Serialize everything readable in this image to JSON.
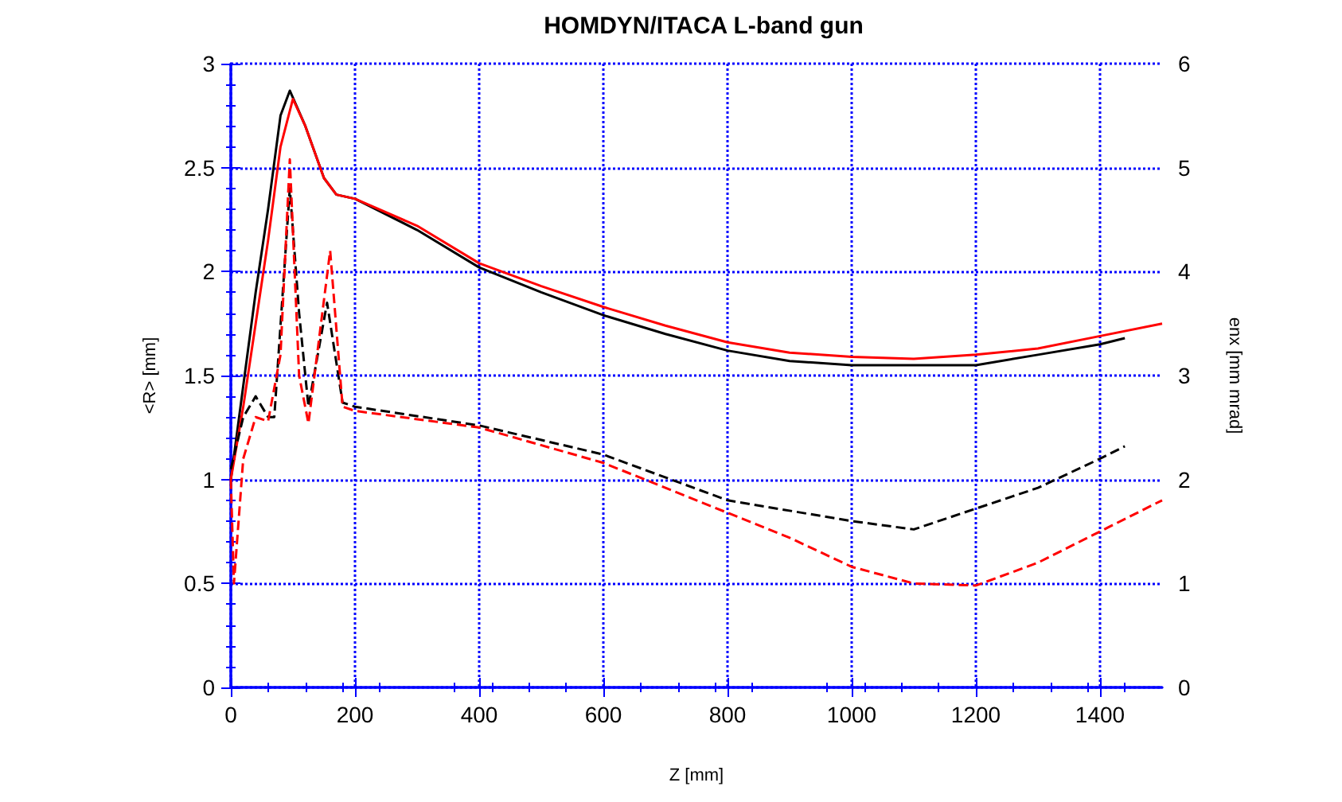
{
  "chart_data": {
    "type": "line",
    "title": "HOMDYN/ITACA L-band gun",
    "xlabel": "Z [mm]",
    "ylabel": "<R> [mm]",
    "y2label": "enx [mm mrad]",
    "xlim": [
      0,
      1500
    ],
    "xticks": [
      0,
      200,
      400,
      600,
      800,
      1000,
      1200,
      1400
    ],
    "ylim": [
      0,
      3
    ],
    "yticks": [
      0,
      0.5,
      1,
      1.5,
      2,
      2.5,
      3
    ],
    "y2lim": [
      0,
      6
    ],
    "y2ticks": [
      0,
      1,
      2,
      3,
      4,
      5,
      6
    ],
    "grid": true,
    "marker": "none",
    "series": [
      {
        "color": "#000000",
        "line_style": "solid",
        "x": [
          0,
          20,
          40,
          60,
          80,
          95,
          120,
          150,
          170,
          200,
          300,
          400,
          500,
          600,
          700,
          800,
          900,
          1000,
          1100,
          1200,
          1300,
          1400,
          1440
        ],
        "values": [
          1.0,
          1.45,
          1.9,
          2.3,
          2.75,
          2.87,
          2.7,
          2.45,
          2.37,
          2.35,
          2.2,
          2.02,
          1.9,
          1.79,
          1.7,
          1.62,
          1.57,
          1.55,
          1.55,
          1.55,
          1.6,
          1.65,
          1.68
        ]
      },
      {
        "color": "#ff0000",
        "line_style": "solid",
        "x": [
          0,
          20,
          40,
          60,
          80,
          100,
          120,
          150,
          170,
          200,
          300,
          400,
          500,
          600,
          700,
          800,
          900,
          1000,
          1100,
          1200,
          1300,
          1400,
          1500
        ],
        "values": [
          1.0,
          1.35,
          1.75,
          2.15,
          2.6,
          2.83,
          2.7,
          2.45,
          2.37,
          2.35,
          2.22,
          2.04,
          1.93,
          1.83,
          1.74,
          1.66,
          1.61,
          1.59,
          1.58,
          1.6,
          1.63,
          1.69,
          1.75
        ]
      },
      {
        "color": "#000000",
        "line_style": "dashed",
        "axis": "y2",
        "x": [
          0,
          20,
          40,
          60,
          70,
          95,
          110,
          125,
          155,
          180,
          200,
          400,
          600,
          800,
          1000,
          1100,
          1200,
          1300,
          1400,
          1440
        ],
        "values": [
          2.1,
          2.6,
          2.8,
          2.6,
          2.6,
          4.8,
          3.6,
          2.7,
          3.7,
          2.74,
          2.7,
          2.52,
          2.24,
          1.8,
          1.6,
          1.52,
          1.72,
          1.92,
          2.2,
          2.32
        ]
      },
      {
        "color": "#ff0000",
        "line_style": "dashed",
        "axis": "y2",
        "x": [
          0,
          5,
          20,
          40,
          60,
          80,
          95,
          110,
          125,
          160,
          180,
          200,
          400,
          600,
          800,
          900,
          1000,
          1100,
          1200,
          1300,
          1400,
          1500
        ],
        "values": [
          2.0,
          1.0,
          2.2,
          2.6,
          2.56,
          3.2,
          5.08,
          3.0,
          2.54,
          4.2,
          2.7,
          2.66,
          2.5,
          2.16,
          1.68,
          1.44,
          1.16,
          1.0,
          0.98,
          1.2,
          1.5,
          1.8
        ]
      }
    ]
  }
}
